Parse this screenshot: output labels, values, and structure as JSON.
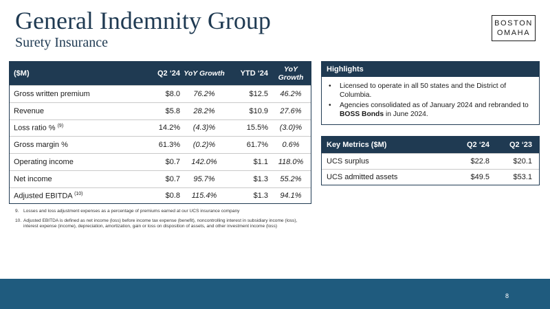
{
  "header": {
    "title": "General Indemnity Group",
    "subtitle": "Surety Insurance",
    "logo_line1": "BOSTON",
    "logo_line2": "OMAHA"
  },
  "main_table": {
    "columns": [
      "($M)",
      "Q2 ‘24",
      "YoY Growth",
      "YTD ‘24",
      "YoY Growth"
    ],
    "rows": [
      {
        "label": "Gross written premium",
        "sup": "",
        "q2": "$8.0",
        "q2_yoy": "76.2%",
        "ytd": "$12.5",
        "ytd_yoy": "46.2%"
      },
      {
        "label": "Revenue",
        "sup": "",
        "q2": "$5.8",
        "q2_yoy": "28.2%",
        "ytd": "$10.9",
        "ytd_yoy": "27.6%"
      },
      {
        "label": "Loss ratio %",
        "sup": "(9)",
        "q2": "14.2%",
        "q2_yoy": "(4.3)%",
        "ytd": "15.5%",
        "ytd_yoy": "(3.0)%"
      },
      {
        "label": "Gross margin %",
        "sup": "",
        "q2": "61.3%",
        "q2_yoy": "(0.2)%",
        "ytd": "61.7%",
        "ytd_yoy": "0.6%"
      },
      {
        "label": "Operating income",
        "sup": "",
        "q2": "$0.7",
        "q2_yoy": "142.0%",
        "ytd": "$1.1",
        "ytd_yoy": "118.0%"
      },
      {
        "label": "Net income",
        "sup": "",
        "q2": "$0.7",
        "q2_yoy": "95.7%",
        "ytd": "$1.3",
        "ytd_yoy": "55.2%"
      },
      {
        "label": "Adjusted EBITDA",
        "sup": "(10)",
        "q2": "$0.8",
        "q2_yoy": "115.4%",
        "ytd": "$1.3",
        "ytd_yoy": "94.1%"
      }
    ]
  },
  "footnotes": [
    {
      "num": "9.",
      "text": "Losses and loss adjustment expenses as a percentage of premiums earned at our UCS insurance company"
    },
    {
      "num": "10.",
      "text": "Adjusted EBITDA is defined as net income (loss) before income tax expense (benefit), noncontrolling interest in subsidiary income (loss), interest expense (income), depreciation, amortization, gain or loss on disposition of assets, and other investment income (loss)"
    }
  ],
  "highlights": {
    "heading": "Highlights",
    "item1": "Licensed to operate in all 50 states and the District of Columbia.",
    "item2_pre": "Agencies consolidated as of January 2024 and rebranded to ",
    "item2_bold": "BOSS Bonds",
    "item2_post": " in June 2024."
  },
  "key_metrics": {
    "columns": [
      "Key Metrics ($M)",
      "Q2 ‘24",
      "Q2 ‘23"
    ],
    "rows": [
      {
        "label": "UCS surplus",
        "q2_24": "$22.8",
        "q2_23": "$20.1"
      },
      {
        "label": "UCS admitted assets",
        "q2_24": "$49.5",
        "q2_23": "$53.1"
      }
    ]
  },
  "footer": {
    "page_number": "8",
    "color": "#1f5b7e"
  },
  "colors": {
    "header_bg": "#1f3a52",
    "title": "#1f3a52"
  }
}
